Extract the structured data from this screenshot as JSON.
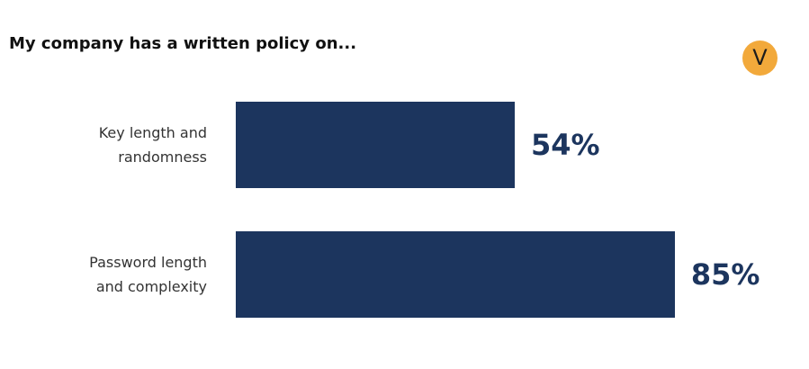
{
  "chart_data": {
    "type": "bar",
    "orientation": "horizontal",
    "title": "My company has a written policy on...",
    "logo": "V",
    "categories": [
      "Key length and randomness",
      "Password length and complexity"
    ],
    "values": [
      54,
      85
    ],
    "value_labels": [
      "54%",
      "85%"
    ],
    "color": "#1c355e"
  }
}
